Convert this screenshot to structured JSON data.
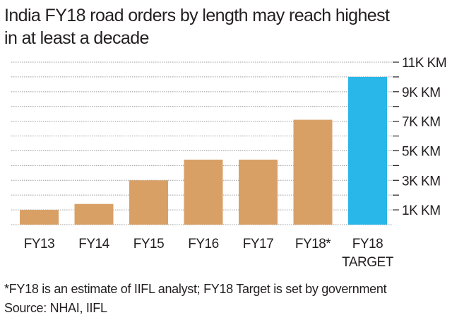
{
  "title_lines": [
    "India FY18 road orders by length may reach highest",
    "in at least a decade"
  ],
  "footnote": "*FY18 is an estimate of IIFL analyst; FY18 Target is set by government",
  "source": "Source: NHAI, IIFL",
  "colors": {
    "bar": "#d9a066",
    "highlight": "#29b6e8",
    "grid": "#9a9a9a",
    "text": "#231f20"
  },
  "chart_data": {
    "type": "bar",
    "categories": [
      "FY13",
      "FY14",
      "FY15",
      "FY16",
      "FY17",
      "FY18*",
      "FY18\nTARGET"
    ],
    "values": [
      1000,
      1400,
      3000,
      4400,
      4400,
      7100,
      10000
    ],
    "highlight_index": 6,
    "yticks": [
      1000,
      3000,
      5000,
      7000,
      9000,
      11000
    ],
    "ytick_labels": [
      "1K KM",
      "3K KM",
      "5K KM",
      "7K KM",
      "9K KM",
      "11K KM"
    ],
    "ylim": [
      0,
      11000
    ],
    "grid": true,
    "y_axis_position": "right"
  }
}
